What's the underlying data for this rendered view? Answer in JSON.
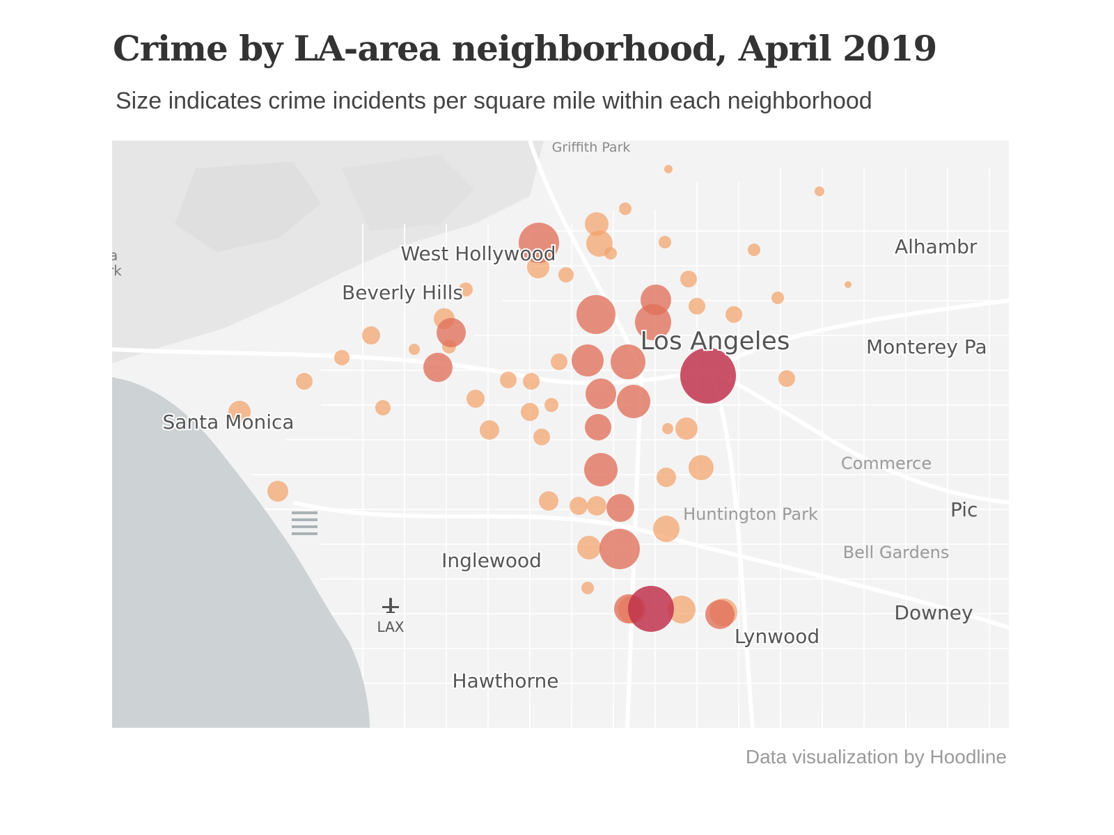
{
  "title": "Crime by LA-area neighborhood, April 2019",
  "subtitle": "Size indicates crime incidents per square mile within each neighborhood",
  "credit": "Data visualization by Hoodline",
  "colors": {
    "low": "#f2a26b",
    "mid": "#e0705a",
    "high": "#c0344d",
    "water": "#cdd3d4",
    "land": "#f3f3f3",
    "road": "#ffffff"
  },
  "map_labels": {
    "griffith_park": "Griffith Park",
    "west_hollywood": "West Hollywood",
    "beverly_hills": "Beverly Hills",
    "los_angeles": "Los Angeles",
    "alhambra": "Alhambr",
    "monterey_park": "Monterey Pa",
    "santa_monica": "Santa Monica",
    "commerce": "Commerce",
    "huntington_park": "Huntington Park",
    "pico": "Pic",
    "bell_gardens": "Bell Gardens",
    "inglewood": "Inglewood",
    "downey": "Downey",
    "lynwood": "Lynwood",
    "lax": "LAX",
    "hawthorne": "Hawthorne",
    "edge_a": "a",
    "edge_rk": "rk"
  },
  "airport_icon": "airplane-icon"
}
